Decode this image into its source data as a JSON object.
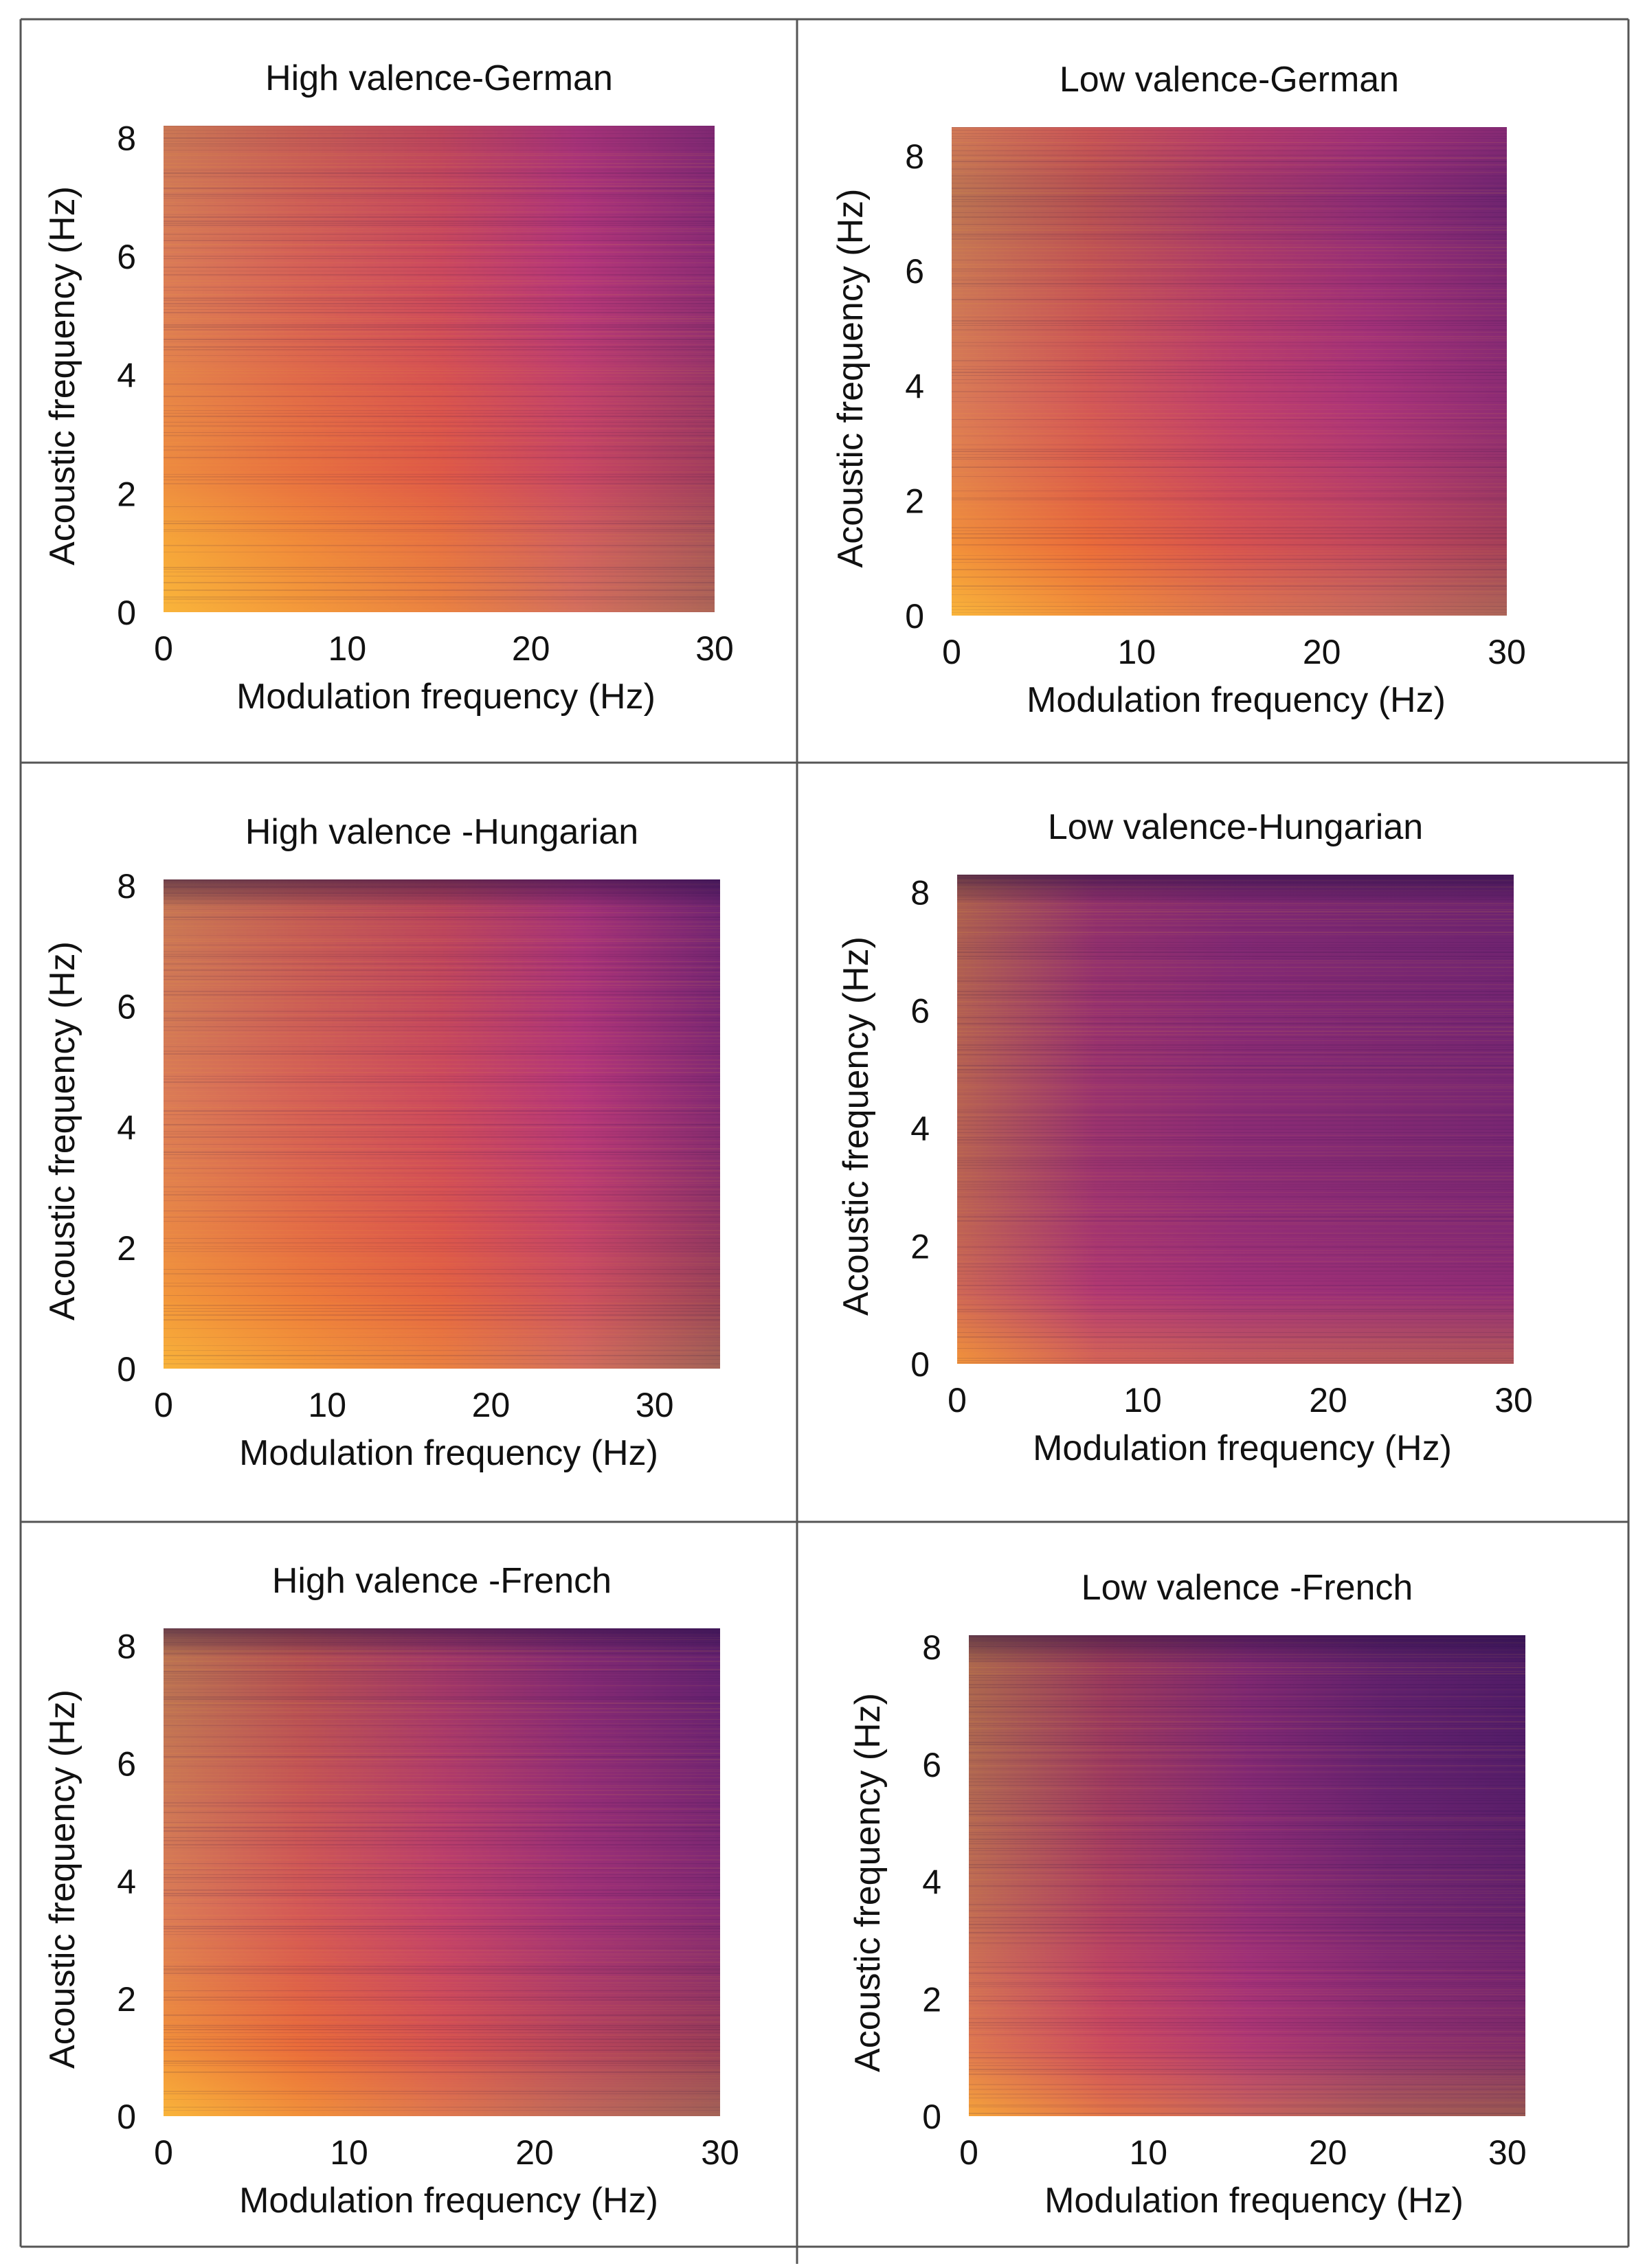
{
  "chart_data": [
    {
      "type": "heatmap",
      "title": "High valence-German",
      "xlabel": "Modulation frequency (Hz)",
      "ylabel": "Acoustic frequency (Hz)",
      "xlim": [
        0,
        30
      ],
      "ylim": [
        0,
        8.2
      ],
      "xticks": [
        0,
        10,
        20,
        30
      ],
      "yticks": [
        0,
        2,
        4,
        6,
        8
      ],
      "x_profile": [
        1.0,
        0.85,
        0.7,
        0.5,
        0.3
      ],
      "y_profile": [
        1.0,
        0.9,
        0.7,
        0.65,
        0.55,
        0.5,
        0.45,
        0.4
      ],
      "top_dark": 0.0
    },
    {
      "type": "heatmap",
      "title": "Low valence-German",
      "xlabel": "Modulation frequency (Hz)",
      "ylabel": "Acoustic frequency (Hz)",
      "xlim": [
        0,
        30
      ],
      "ylim": [
        0,
        8.5
      ],
      "xticks": [
        0,
        10,
        20,
        30
      ],
      "yticks": [
        0,
        2,
        4,
        6,
        8
      ],
      "x_profile": [
        1.0,
        0.8,
        0.6,
        0.45,
        0.3
      ],
      "y_profile": [
        1.0,
        0.75,
        0.6,
        0.5,
        0.45,
        0.4,
        0.3,
        0.45
      ],
      "top_dark": 0.0
    },
    {
      "type": "heatmap",
      "title": "High valence -Hungarian",
      "xlabel": "Modulation frequency (Hz)",
      "ylabel": "Acoustic frequency (Hz)",
      "xlim": [
        0,
        34
      ],
      "ylim": [
        0,
        8.1
      ],
      "xticks": [
        0,
        10,
        20,
        30
      ],
      "yticks": [
        0,
        2,
        4,
        6,
        8
      ],
      "x_profile": [
        1.0,
        0.85,
        0.7,
        0.5,
        0.25
      ],
      "y_profile": [
        1.0,
        0.8,
        0.65,
        0.55,
        0.5,
        0.45,
        0.42,
        0.35
      ],
      "top_dark": 0.5
    },
    {
      "type": "heatmap",
      "title": "Low valence-Hungarian",
      "xlabel": "Modulation frequency (Hz)",
      "ylabel": "Acoustic frequency (Hz)",
      "xlim": [
        0,
        30
      ],
      "ylim": [
        0,
        8.3
      ],
      "xticks": [
        0,
        10,
        20,
        30
      ],
      "yticks": [
        0,
        2,
        4,
        6,
        8
      ],
      "x_profile": [
        0.9,
        0.55,
        0.45,
        0.4,
        0.35
      ],
      "y_profile": [
        0.9,
        0.45,
        0.35,
        0.3,
        0.3,
        0.28,
        0.25,
        0.2
      ],
      "top_dark": 0.5
    },
    {
      "type": "heatmap",
      "title": "High valence -French",
      "xlabel": "Modulation frequency (Hz)",
      "ylabel": "Acoustic frequency (Hz)",
      "xlim": [
        0,
        30
      ],
      "ylim": [
        0,
        8.3
      ],
      "xticks": [
        0,
        10,
        20,
        30
      ],
      "yticks": [
        0,
        2,
        4,
        6,
        8
      ],
      "x_profile": [
        1.0,
        0.8,
        0.6,
        0.4,
        0.25
      ],
      "y_profile": [
        1.0,
        0.75,
        0.6,
        0.5,
        0.45,
        0.4,
        0.32,
        0.3
      ],
      "top_dark": 0.5
    },
    {
      "type": "heatmap",
      "title": "Low valence -French",
      "xlabel": "Modulation frequency (Hz)",
      "ylabel": "Acoustic frequency (Hz)",
      "xlim": [
        0,
        31
      ],
      "ylim": [
        0,
        8.2
      ],
      "xticks": [
        0,
        10,
        20,
        30
      ],
      "yticks": [
        0,
        2,
        4,
        6,
        8
      ],
      "x_profile": [
        0.95,
        0.65,
        0.45,
        0.3,
        0.2
      ],
      "y_profile": [
        0.95,
        0.55,
        0.45,
        0.35,
        0.3,
        0.25,
        0.22,
        0.2
      ],
      "top_dark": 0.5
    }
  ],
  "colors": {
    "colormap_low": "#1b0c41",
    "colormap_mid_low": "#5c1f6e",
    "colormap_mid": "#b5367a",
    "colormap_mid_high": "#e8613a",
    "colormap_high": "#f9b43a",
    "grid_lines": "#555555",
    "text": "#111111"
  }
}
